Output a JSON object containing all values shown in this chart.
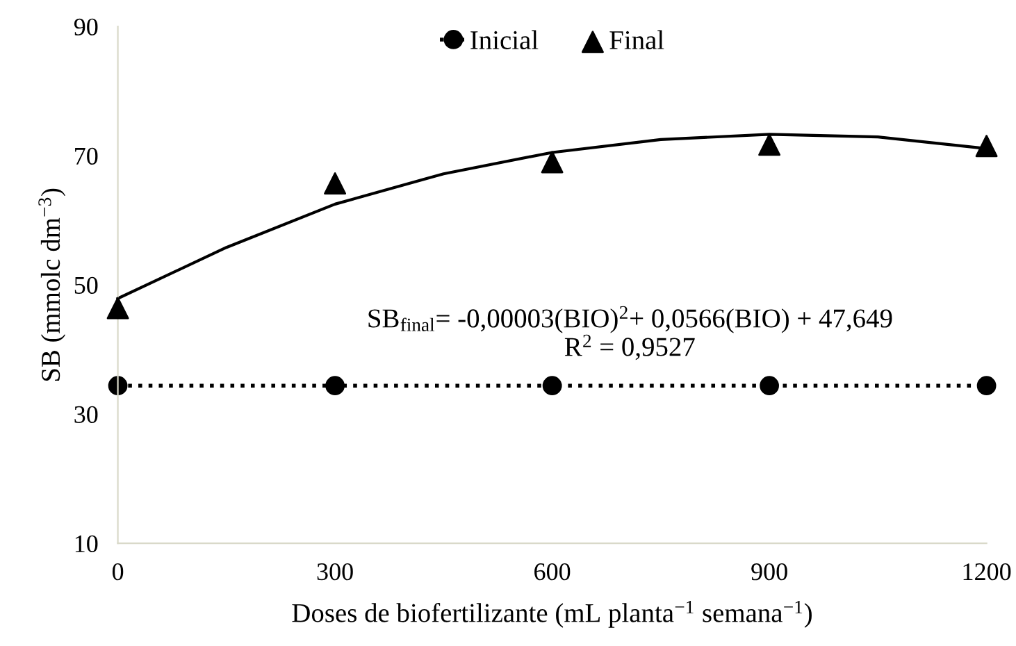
{
  "chart_data": {
    "type": "line",
    "xlabel": "Doses de biofertilizante (mL planta$^{−1}$ semana$^{−1}$)",
    "ylabel": "SB (mmolc dm$^{−3}$)",
    "x": [
      0,
      300,
      600,
      900,
      1200
    ],
    "series": [
      {
        "name": "Inicial",
        "marker": "circle",
        "line_style": "dotted",
        "color": "#000000",
        "values": [
          34.4,
          34.4,
          34.4,
          34.4,
          34.4
        ]
      },
      {
        "name": "Final",
        "type": "scatter",
        "marker": "triangle",
        "color": "#000000",
        "values": [
          46.4,
          65.7,
          69.0,
          71.7,
          71.5
        ]
      },
      {
        "line_style": "solid",
        "color": "#000000",
        "x": [
          0,
          150,
          300,
          450,
          600,
          750,
          900,
          1050,
          1200
        ],
        "values": [
          47.9,
          55.8,
          62.5,
          67.2,
          70.5,
          72.5,
          73.3,
          72.9,
          71.1
        ]
      }
    ],
    "annotations": [
      "SB$_{final}$= -0,00003(BIO)$^{2}$+ 0,0566(BIO) + 47,649",
      "R$^{2}$ = 0,9527"
    ],
    "xlim": [
      0,
      1200
    ],
    "xticks": [
      0,
      300,
      600,
      900,
      1200
    ],
    "ylim": [
      10,
      90
    ],
    "yticks": [
      10,
      30,
      50,
      70,
      90
    ],
    "grid": false,
    "legend": "top"
  }
}
